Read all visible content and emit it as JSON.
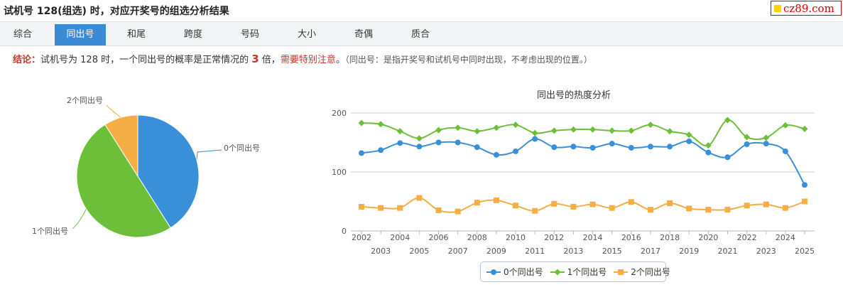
{
  "header": {
    "title": "试机号 128(组选) 时，对应开奖号的组选分析结果",
    "brand": "cz89.com"
  },
  "tabs": [
    {
      "label": "综合",
      "active": false
    },
    {
      "label": "同出号",
      "active": true
    },
    {
      "label": "和尾",
      "active": false
    },
    {
      "label": "跨度",
      "active": false
    },
    {
      "label": "号码",
      "active": false
    },
    {
      "label": "大小",
      "active": false
    },
    {
      "label": "奇偶",
      "active": false
    },
    {
      "label": "质合",
      "active": false
    }
  ],
  "conclusion": {
    "label": "结论：",
    "text1": "试机号为 128 时，一个同出号的概率是正常情况的 ",
    "multiple": "3",
    "text2": " 倍，",
    "warning": "需要特别注意",
    "text3": "。",
    "note": "（同出号：是指开奖号和试机号中同时出现，不考虑出现的位置。）"
  },
  "colors": {
    "series0": "#3a8fd9",
    "series1": "#6dbf3a",
    "series2": "#f5ad45"
  },
  "chart_data": [
    {
      "type": "pie",
      "labels": [
        "0个同出号",
        "1个同出号",
        "2个同出号"
      ],
      "values": [
        41,
        50,
        9
      ],
      "colors": [
        "#3a8fd9",
        "#6dbf3a",
        "#f5ad45"
      ]
    },
    {
      "type": "line",
      "title": "同出号的热度分析",
      "x": [
        "2002",
        "2003",
        "2004",
        "2005",
        "2006",
        "2007",
        "2008",
        "2009",
        "2010",
        "2011",
        "2012",
        "2013",
        "2014",
        "2015",
        "2016",
        "2017",
        "2018",
        "2019",
        "2020",
        "2021",
        "2022",
        "2023",
        "2024",
        "2025"
      ],
      "ylim": [
        0,
        200
      ],
      "yticks": [
        0,
        100,
        200
      ],
      "grid": true,
      "legend": "bottom",
      "series": [
        {
          "name": "0个同出号",
          "color": "#3a8fd9",
          "marker": "circle",
          "values": [
            132,
            137,
            149,
            143,
            150,
            150,
            142,
            129,
            135,
            156,
            142,
            143,
            141,
            148,
            141,
            143,
            143,
            152,
            133,
            125,
            147,
            148,
            135,
            78
          ]
        },
        {
          "name": "1个同出号",
          "color": "#6dbf3a",
          "marker": "diamond",
          "values": [
            183,
            181,
            169,
            157,
            171,
            175,
            169,
            175,
            180,
            166,
            170,
            172,
            172,
            170,
            170,
            180,
            169,
            163,
            145,
            188,
            159,
            158,
            179,
            173
          ]
        },
        {
          "name": "2个同出号",
          "color": "#f5ad45",
          "marker": "square",
          "values": [
            41,
            39,
            39,
            56,
            35,
            33,
            48,
            52,
            43,
            34,
            46,
            41,
            45,
            39,
            49,
            36,
            47,
            38,
            36,
            36,
            43,
            45,
            39,
            50
          ]
        }
      ]
    }
  ]
}
